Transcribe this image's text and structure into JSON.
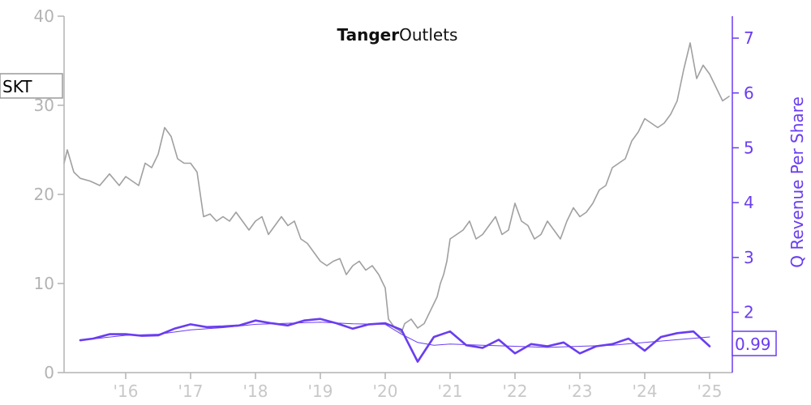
{
  "logo": {
    "bold": "Tanger",
    "light": "Outlets"
  },
  "ticker": "SKT",
  "value_badge": "0.99",
  "colors": {
    "price": "#a0a0a0",
    "metric": "#6a3df0",
    "axis_left": "#b3b3b3",
    "axis_right": "#6a3df0"
  },
  "chart_data": {
    "type": "line",
    "y_left": {
      "min": 0,
      "max": 40,
      "ticks": [
        "0",
        "10",
        "20",
        "30",
        "40"
      ]
    },
    "y_right": {
      "label": "Q Revenue Per Share",
      "min": 0.9,
      "max": 7.4,
      "ticks": [
        "2",
        "3",
        "4",
        "5",
        "6",
        "7"
      ]
    },
    "x_ticks": [
      {
        "label": "'16",
        "x": 2016
      },
      {
        "label": "'17",
        "x": 2017
      },
      {
        "label": "'18",
        "x": 2018
      },
      {
        "label": "'19",
        "x": 2019
      },
      {
        "label": "'20",
        "x": 2020
      },
      {
        "label": "'21",
        "x": 2021
      },
      {
        "label": "'22",
        "x": 2022
      },
      {
        "label": "'23",
        "x": 2023
      },
      {
        "label": "'24",
        "x": 2024
      },
      {
        "label": "'25",
        "x": 2025
      }
    ],
    "x_range": [
      2015.05,
      2025.35
    ],
    "series": [
      {
        "axis": "left",
        "x": [
          2015.05,
          2015.1,
          2015.2,
          2015.3,
          2015.45,
          2015.6,
          2015.75,
          2015.9,
          2016.0,
          2016.1,
          2016.2,
          2016.3,
          2016.4,
          2016.5,
          2016.6,
          2016.7,
          2016.8,
          2016.9,
          2017.0,
          2017.1,
          2017.2,
          2017.3,
          2017.4,
          2017.5,
          2017.6,
          2017.7,
          2017.8,
          2017.9,
          2018.0,
          2018.1,
          2018.2,
          2018.3,
          2018.4,
          2018.5,
          2018.6,
          2018.7,
          2018.8,
          2018.9,
          2019.0,
          2019.1,
          2019.2,
          2019.3,
          2019.4,
          2019.5,
          2019.6,
          2019.7,
          2019.8,
          2019.9,
          2020.0,
          2020.05,
          2020.1,
          2020.15,
          2020.2,
          2020.25,
          2020.3,
          2020.4,
          2020.5,
          2020.6,
          2020.7,
          2020.8,
          2020.85,
          2020.9,
          2020.95,
          2021.0,
          2021.1,
          2021.2,
          2021.3,
          2021.4,
          2021.5,
          2021.6,
          2021.7,
          2021.8,
          2021.9,
          2022.0,
          2022.1,
          2022.2,
          2022.3,
          2022.4,
          2022.5,
          2022.6,
          2022.7,
          2022.8,
          2022.9,
          2023.0,
          2023.1,
          2023.2,
          2023.3,
          2023.4,
          2023.5,
          2023.6,
          2023.7,
          2023.8,
          2023.9,
          2024.0,
          2024.1,
          2024.2,
          2024.3,
          2024.4,
          2024.5,
          2024.6,
          2024.7,
          2024.8,
          2024.9,
          2025.0,
          2025.1,
          2025.2,
          2025.3
        ],
        "values": [
          23.5,
          25.0,
          22.5,
          21.8,
          21.5,
          21.0,
          22.3,
          21.0,
          22.0,
          21.5,
          21.0,
          23.5,
          23.0,
          24.5,
          27.5,
          26.5,
          24.0,
          23.5,
          23.5,
          22.5,
          17.5,
          17.8,
          17.0,
          17.5,
          17.0,
          18.0,
          17.0,
          16.0,
          17.0,
          17.5,
          15.5,
          16.5,
          17.5,
          16.5,
          17.0,
          15.0,
          14.5,
          13.5,
          12.5,
          12.0,
          12.5,
          12.8,
          11.0,
          12.0,
          12.5,
          11.5,
          12.0,
          11.0,
          9.5,
          6.0,
          5.5,
          5.0,
          4.8,
          4.5,
          5.5,
          6.0,
          5.0,
          5.5,
          7.0,
          8.5,
          10.0,
          11.0,
          12.5,
          15.0,
          15.5,
          16.0,
          17.0,
          15.0,
          15.5,
          16.5,
          17.5,
          15.5,
          16.0,
          19.0,
          17.0,
          16.5,
          15.0,
          15.5,
          17.0,
          16.0,
          15.0,
          17.0,
          18.5,
          17.5,
          18.0,
          19.0,
          20.5,
          21.0,
          23.0,
          23.5,
          24.0,
          26.0,
          27.0,
          28.5,
          28.0,
          27.5,
          28.0,
          29.0,
          30.5,
          34.0,
          37.0,
          33.0,
          34.5,
          33.5,
          32.0,
          30.5,
          31.0
        ]
      },
      {
        "axis": "right",
        "x": [
          2015.3,
          2015.5,
          2015.75,
          2016.0,
          2016.25,
          2016.5,
          2016.75,
          2017.0,
          2017.25,
          2017.5,
          2017.75,
          2018.0,
          2018.25,
          2018.5,
          2018.75,
          2019.0,
          2019.25,
          2019.5,
          2019.75,
          2020.0,
          2020.25,
          2020.5,
          2020.75,
          2021.0,
          2021.25,
          2021.5,
          2021.75,
          2022.0,
          2022.25,
          2022.5,
          2022.75,
          2023.0,
          2023.25,
          2023.5,
          2023.75,
          2024.0,
          2024.25,
          2024.5,
          2024.75,
          2025.0
        ],
        "values": [
          1.49,
          1.52,
          1.6,
          1.6,
          1.57,
          1.58,
          1.7,
          1.78,
          1.73,
          1.74,
          1.76,
          1.85,
          1.8,
          1.76,
          1.85,
          1.88,
          1.8,
          1.7,
          1.78,
          1.8,
          1.68,
          1.1,
          1.55,
          1.65,
          1.4,
          1.35,
          1.5,
          1.25,
          1.42,
          1.38,
          1.45,
          1.25,
          1.38,
          1.42,
          1.52,
          1.3,
          1.55,
          1.62,
          1.65,
          1.38
        ]
      },
      {
        "axis": "right",
        "x": [
          2015.3,
          2016.0,
          2016.5,
          2017.0,
          2017.5,
          2018.0,
          2018.5,
          2019.0,
          2019.5,
          2020.0,
          2020.25,
          2020.5,
          2020.75,
          2021.0,
          2021.5,
          2022.0,
          2022.5,
          2023.0,
          2023.5,
          2024.0,
          2024.5,
          2025.0
        ],
        "values": [
          1.49,
          1.58,
          1.6,
          1.68,
          1.72,
          1.78,
          1.8,
          1.82,
          1.79,
          1.78,
          1.6,
          1.45,
          1.4,
          1.42,
          1.4,
          1.38,
          1.36,
          1.38,
          1.4,
          1.45,
          1.5,
          1.55
        ]
      }
    ]
  }
}
